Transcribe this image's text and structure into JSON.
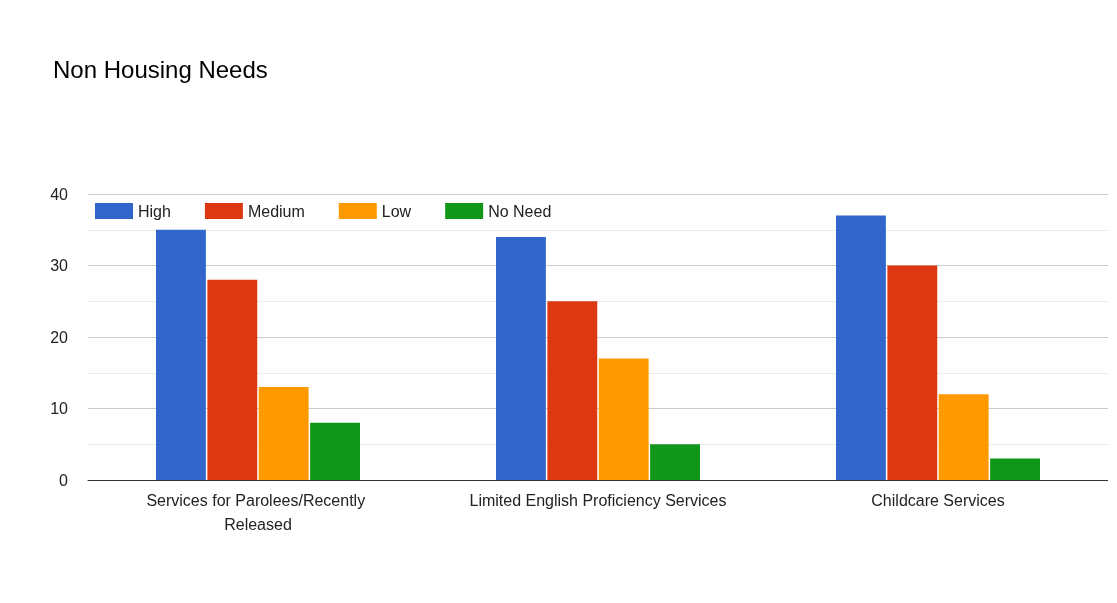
{
  "chart_data": {
    "type": "bar",
    "title": "Non Housing Needs",
    "categories": [
      "Services for Parolees/Recently Released",
      "Limited English Proficiency Services",
      "Childcare Services"
    ],
    "series": [
      {
        "name": "High",
        "color": "#3366cc",
        "values": [
          35,
          34,
          37
        ]
      },
      {
        "name": "Medium",
        "color": "#dc3912",
        "values": [
          28,
          25,
          30
        ]
      },
      {
        "name": "Low",
        "color": "#ff9900",
        "values": [
          13,
          17,
          12
        ]
      },
      {
        "name": "No Need",
        "color": "#109618",
        "values": [
          8,
          5,
          3
        ]
      }
    ],
    "ylim": [
      0,
      40
    ],
    "yticks": [
      0,
      {
        "value": 5,
        "label": null
      },
      10,
      {
        "value": 15,
        "label": null
      },
      20,
      {
        "value": 25,
        "label": null
      },
      30,
      {
        "value": 35,
        "label": null
      },
      40
    ],
    "grid": "y",
    "legend": "top left"
  }
}
